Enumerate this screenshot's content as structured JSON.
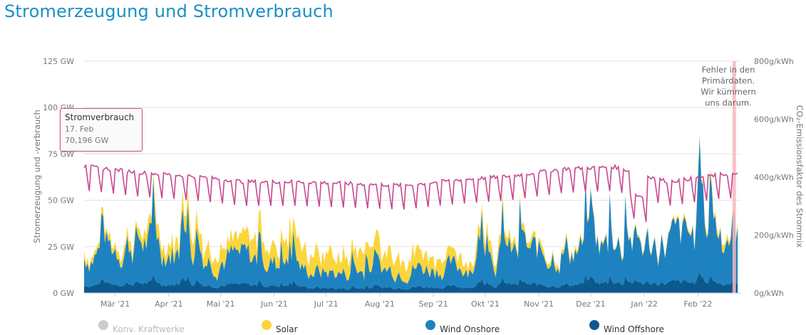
{
  "page": {
    "title": "Stromerzeugung und Stromverbrauch"
  },
  "chart_data": {
    "type": "area",
    "x_axis": {
      "type": "date",
      "range": [
        "2021-02-11",
        "2022-02-26"
      ],
      "tick_labels": [
        "Mär '21",
        "Apr '21",
        "Mai '21",
        "Jun '21",
        "Jul '21",
        "Aug '21",
        "Sep '21",
        "Okt '21",
        "Nov '21",
        "Dez '21",
        "Jan '22",
        "Feb '22"
      ],
      "tick_dates": [
        "2021-03-01",
        "2021-04-01",
        "2021-05-01",
        "2021-06-01",
        "2021-07-01",
        "2021-08-01",
        "2021-09-01",
        "2021-10-01",
        "2021-11-01",
        "2021-12-01",
        "2022-01-01",
        "2022-02-01"
      ]
    },
    "y_axis_left": {
      "title": "Stromerzeugung und -verbrauch",
      "range": [
        0,
        125
      ],
      "tick_values": [
        0,
        25,
        50,
        75,
        100,
        125
      ],
      "tick_labels": [
        "0 GW",
        "25 GW",
        "50 GW",
        "75 GW",
        "100 GW",
        "125 GW"
      ]
    },
    "y_axis_right": {
      "title": "CO₂-Emissionsfaktor des Strommix",
      "range": [
        0,
        800
      ],
      "tick_values": [
        0,
        200,
        400,
        600,
        800
      ],
      "tick_labels": [
        "0g/kWh",
        "200g/kWh",
        "400g/kWh",
        "600g/kWh",
        "800g/kWh"
      ]
    },
    "grid": true,
    "legend_position": "bottom",
    "stacked": true,
    "series": [
      {
        "name": "Konv. Kraftwerke",
        "color": "#cccccc",
        "visible": false,
        "axis": "left",
        "values": []
      },
      {
        "name": "Wind Offshore",
        "color": "#0b5a8e",
        "axis": "left",
        "x": [
          "2021-02-15",
          "2021-03-15",
          "2021-04-15",
          "2021-05-15",
          "2021-06-15",
          "2021-07-15",
          "2021-08-15",
          "2021-09-15",
          "2021-10-15",
          "2021-11-15",
          "2021-12-15",
          "2022-01-15",
          "2022-02-15"
        ],
        "values": [
          4,
          5,
          4,
          4,
          3,
          2,
          3,
          3,
          4,
          4,
          5,
          5,
          5
        ]
      },
      {
        "name": "Wind Onshore",
        "color": "#1f82c0",
        "axis": "left",
        "x": [
          "2021-02-15",
          "2021-03-15",
          "2021-04-15",
          "2021-05-15",
          "2021-06-15",
          "2021-07-15",
          "2021-08-15",
          "2021-09-15",
          "2021-10-15",
          "2021-11-15",
          "2021-12-15",
          "2022-01-15",
          "2022-02-15"
        ],
        "values": [
          14,
          20,
          12,
          13,
          8,
          7,
          9,
          9,
          14,
          16,
          17,
          19,
          25
        ]
      },
      {
        "name": "Solar",
        "color": "#fbd53d",
        "axis": "left",
        "x": [
          "2021-02-15",
          "2021-03-15",
          "2021-04-15",
          "2021-05-15",
          "2021-06-15",
          "2021-07-15",
          "2021-08-15",
          "2021-09-15",
          "2021-10-15",
          "2021-11-15",
          "2021-12-15",
          "2022-01-15",
          "2022-02-15"
        ],
        "values": [
          3,
          5,
          8,
          9,
          10,
          10,
          9,
          7,
          4,
          2,
          1,
          1,
          3
        ]
      },
      {
        "name": "Stromverbrauch",
        "color": "#c8488f",
        "type": "line",
        "axis": "left",
        "x": [
          "2021-02-15",
          "2021-03-15",
          "2021-04-15",
          "2021-05-15",
          "2021-06-15",
          "2021-07-15",
          "2021-08-15",
          "2021-09-15",
          "2021-10-15",
          "2021-11-15",
          "2021-12-15",
          "2022-01-15",
          "2022-02-15"
        ],
        "values": [
          68,
          65,
          63,
          60,
          60,
          59,
          58,
          61,
          63,
          67,
          68,
          60,
          64
        ]
      }
    ],
    "annotations": [
      {
        "type": "band",
        "from": "2022-02-21",
        "to": "2022-02-23",
        "color": "#f7b6bf",
        "text": [
          "Fehler in den",
          "Primärdaten.",
          "Wir kümmern",
          "uns darum."
        ]
      }
    ],
    "tooltip": {
      "series": "Stromverbrauch",
      "date_label": "17. Feb",
      "value_label": "70,196 GW"
    }
  },
  "legend": [
    {
      "label": "Konv. Kraftwerke",
      "color": "#cccccc",
      "active": false
    },
    {
      "label": "Solar",
      "color": "#fbd53d",
      "active": true
    },
    {
      "label": "Wind Onshore",
      "color": "#1f82c0",
      "active": true
    },
    {
      "label": "Wind Offshore",
      "color": "#0b5a8e",
      "active": true
    }
  ]
}
